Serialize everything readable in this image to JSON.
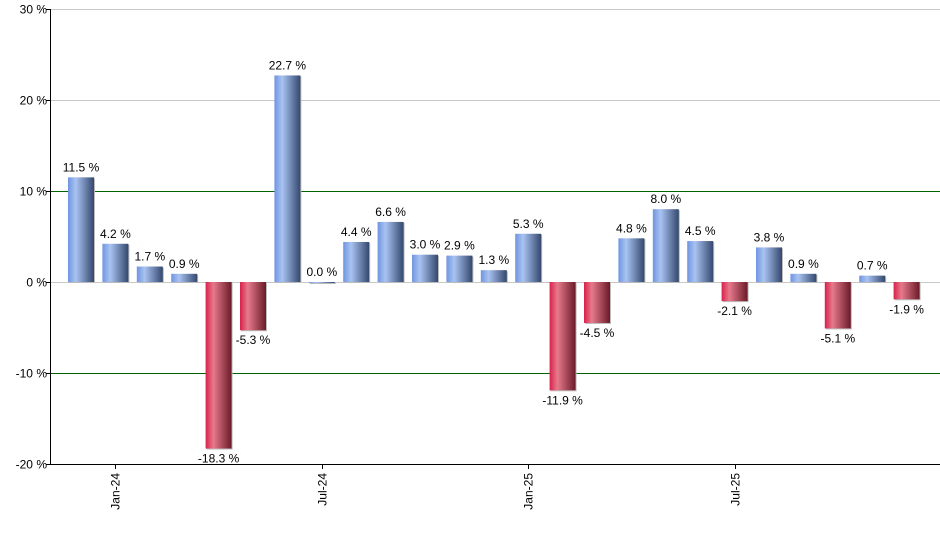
{
  "chart_data": {
    "type": "bar",
    "title": "",
    "xlabel": "",
    "ylabel": "",
    "ylim": [
      -20,
      30
    ],
    "y_ticks": [
      -20,
      -10,
      0,
      10,
      20,
      30
    ],
    "y_tick_labels": [
      "-20 %",
      "-10 %",
      "0 %",
      "10 %",
      "20 %",
      "30 %"
    ],
    "x_ticks": [
      {
        "index": 1,
        "label": "Jan-24"
      },
      {
        "index": 7,
        "label": "Jul-24"
      },
      {
        "index": 13,
        "label": "Jan-25"
      },
      {
        "index": 19,
        "label": "Jul-25"
      }
    ],
    "values": [
      11.5,
      4.2,
      1.7,
      0.9,
      -18.3,
      -5.3,
      22.7,
      0.0,
      4.4,
      6.6,
      3.0,
      2.9,
      1.3,
      5.3,
      -11.9,
      -4.5,
      4.8,
      8.0,
      4.5,
      -2.1,
      3.8,
      0.9,
      -5.1,
      0.7,
      -1.9
    ],
    "value_labels": [
      "11.5 %",
      "4.2 %",
      "1.7 %",
      "0.9 %",
      "-18.3 %",
      "-5.3 %",
      "22.7 %",
      "0.0 %",
      "4.4 %",
      "6.6 %",
      "3.0 %",
      "2.9 %",
      "1.3 %",
      "5.3 %",
      "-11.9 %",
      "-4.5 %",
      "4.8 %",
      "8.0 %",
      "4.5 %",
      "-2.1 %",
      "3.8 %",
      "0.9 %",
      "-5.1 %",
      "0.7 %",
      "-1.9 %"
    ],
    "grid": true,
    "colors": {
      "positive": "#5b7fc8",
      "negative": "#c0203f",
      "grid": "#c8c8c8",
      "grid_major": "#006400"
    }
  }
}
